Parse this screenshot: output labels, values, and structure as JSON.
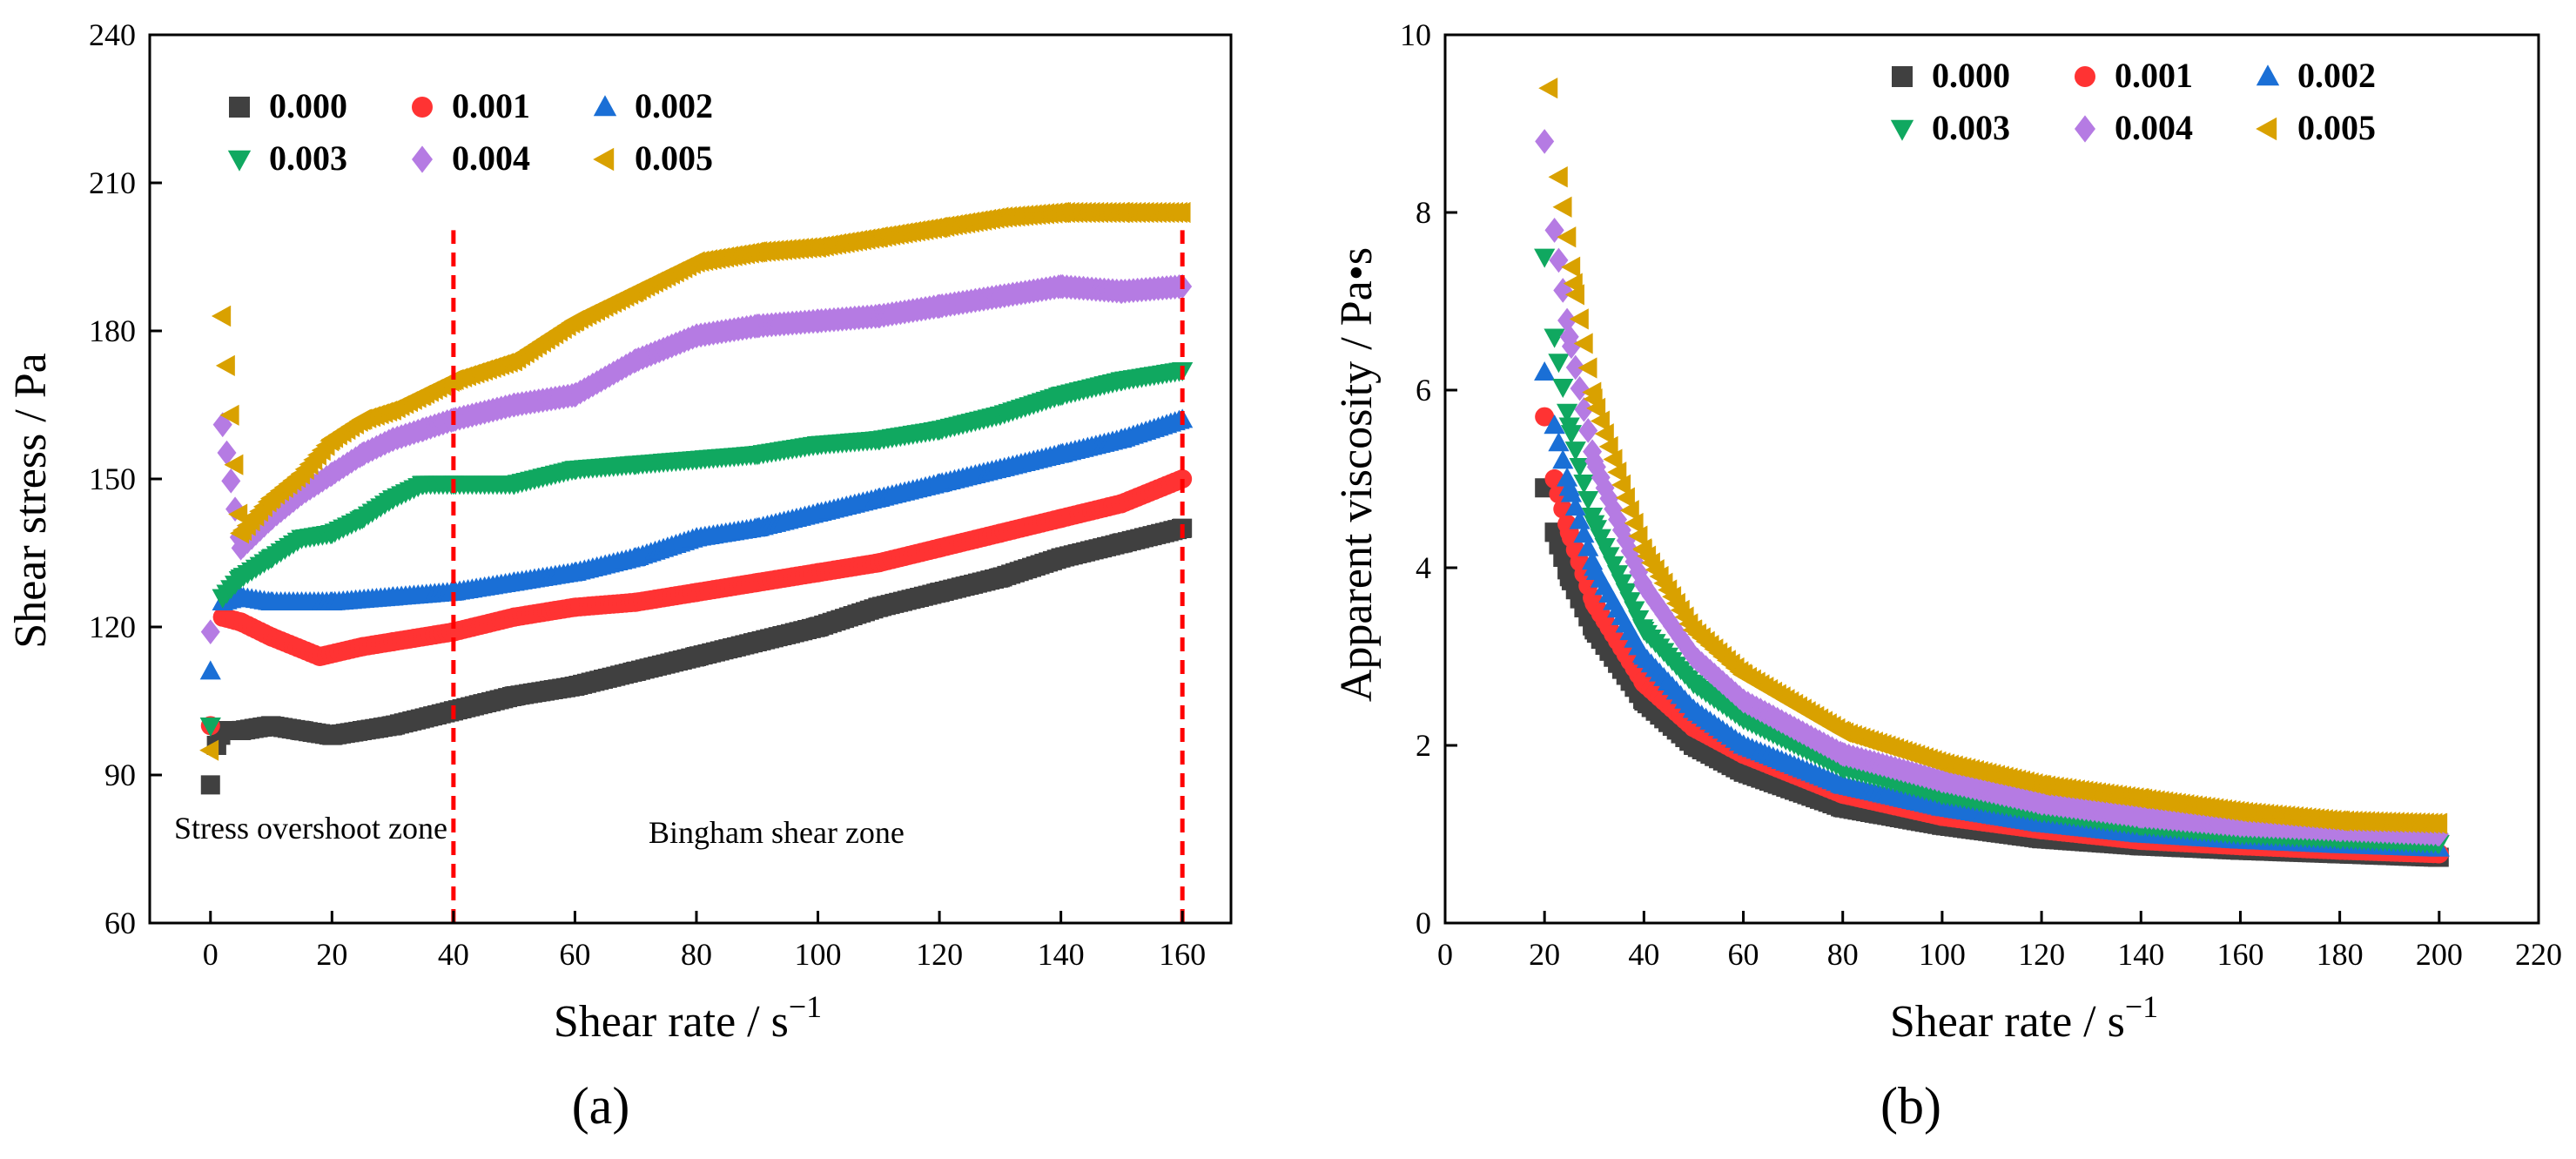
{
  "chart_data": [
    {
      "type": "scatter",
      "panel": "(a)",
      "title": "",
      "xlabel": "Shear rate / s",
      "xlabel_sup": "−1",
      "ylabel": "Shear stress / Pa",
      "xlim": [
        -10,
        168
      ],
      "ylim": [
        60,
        240
      ],
      "xticks": [
        0,
        20,
        40,
        60,
        80,
        100,
        120,
        140,
        160
      ],
      "yticks": [
        60,
        90,
        120,
        150,
        180,
        210,
        240
      ],
      "legend_placement": "top-left",
      "reference_lines": [
        40,
        160
      ],
      "annotations": [
        "Stress overshoot zone",
        "Bingham shear zone"
      ],
      "series": [
        {
          "name": "0.000",
          "marker": "square",
          "color": "#404040",
          "x": [
            0,
            1,
            2,
            5,
            10,
            15,
            20,
            30,
            40,
            50,
            60,
            70,
            80,
            90,
            100,
            110,
            120,
            130,
            140,
            150,
            160
          ],
          "y": [
            88,
            96,
            99,
            99,
            100,
            99,
            98,
            100,
            103,
            106,
            108,
            111,
            114,
            117,
            120,
            124,
            127,
            130,
            134,
            137,
            140
          ]
        },
        {
          "name": "0.001",
          "marker": "circle",
          "color": "#ff3333",
          "x": [
            0,
            2,
            5,
            10,
            18,
            25,
            30,
            40,
            50,
            60,
            70,
            80,
            90,
            100,
            110,
            120,
            130,
            140,
            150,
            160
          ],
          "y": [
            100,
            122,
            121,
            118,
            114,
            116,
            117,
            119,
            122,
            124,
            125,
            127,
            129,
            131,
            133,
            136,
            139,
            142,
            145,
            150
          ]
        },
        {
          "name": "0.002",
          "marker": "triangle-up",
          "color": "#1a6fd6",
          "x": [
            0,
            2,
            5,
            10,
            20,
            30,
            40,
            50,
            60,
            70,
            80,
            90,
            100,
            110,
            120,
            130,
            140,
            150,
            160
          ],
          "y": [
            111,
            125,
            126,
            125,
            125,
            126,
            127,
            129,
            131,
            134,
            138,
            140,
            143,
            146,
            149,
            152,
            155,
            158,
            162
          ]
        },
        {
          "name": "0.003",
          "marker": "triangle-down",
          "color": "#10a860",
          "x": [
            0,
            2,
            5,
            10,
            15,
            20,
            25,
            30,
            35,
            40,
            50,
            60,
            70,
            80,
            90,
            100,
            110,
            120,
            130,
            140,
            150,
            160
          ],
          "y": [
            100,
            126,
            130,
            134,
            138,
            139,
            142,
            146,
            149,
            149,
            149,
            152,
            153,
            154,
            155,
            157,
            158,
            160,
            163,
            167,
            170,
            172
          ]
        },
        {
          "name": "0.004",
          "marker": "diamond",
          "color": "#b57be3",
          "x": [
            0,
            2,
            5,
            10,
            15,
            20,
            25,
            30,
            35,
            40,
            50,
            60,
            70,
            80,
            90,
            100,
            110,
            120,
            130,
            140,
            150,
            160
          ],
          "y": [
            119,
            161,
            136,
            142,
            147,
            151,
            155,
            158,
            160,
            162,
            165,
            167,
            174,
            179,
            181,
            182,
            183,
            185,
            187,
            189,
            188,
            189
          ]
        },
        {
          "name": "0.005",
          "marker": "triangle-left",
          "color": "#d9a100",
          "x": [
            0,
            2,
            5,
            10,
            15,
            20,
            25,
            30,
            35,
            40,
            50,
            60,
            70,
            80,
            90,
            100,
            110,
            120,
            130,
            140,
            150,
            160
          ],
          "y": [
            95,
            183,
            139,
            146,
            151,
            158,
            162,
            164,
            167,
            170,
            174,
            182,
            188,
            194,
            196,
            197,
            199,
            201,
            203,
            204,
            204,
            204
          ]
        }
      ]
    },
    {
      "type": "scatter",
      "panel": "(b)",
      "title": "",
      "xlabel": "Shear rate / s",
      "xlabel_sup": "−1",
      "ylabel": "Apparent viscosity / Pa•s",
      "xlim": [
        0,
        220
      ],
      "ylim": [
        0,
        10
      ],
      "xticks": [
        0,
        20,
        40,
        60,
        80,
        100,
        120,
        140,
        160,
        180,
        200,
        220
      ],
      "yticks": [
        0,
        2,
        4,
        6,
        8,
        10
      ],
      "legend_placement": "top-right",
      "series": [
        {
          "name": "0.000",
          "marker": "square",
          "color": "#404040",
          "x": [
            20,
            22,
            25,
            30,
            40,
            50,
            60,
            80,
            100,
            120,
            140,
            160,
            180,
            200
          ],
          "y": [
            4.9,
            4.4,
            3.9,
            3.3,
            2.5,
            2.0,
            1.7,
            1.3,
            1.1,
            0.95,
            0.87,
            0.82,
            0.78,
            0.74
          ]
        },
        {
          "name": "0.001",
          "marker": "circle",
          "color": "#ff3333",
          "x": [
            20,
            22,
            25,
            30,
            40,
            50,
            60,
            80,
            100,
            120,
            140,
            160,
            180,
            200
          ],
          "y": [
            5.7,
            5.0,
            4.4,
            3.6,
            2.7,
            2.2,
            1.9,
            1.45,
            1.2,
            1.05,
            0.93,
            0.87,
            0.82,
            0.78
          ]
        },
        {
          "name": "0.002",
          "marker": "triangle-up",
          "color": "#1a6fd6",
          "x": [
            20,
            22,
            25,
            30,
            40,
            50,
            60,
            80,
            100,
            120,
            140,
            160,
            180,
            200
          ],
          "y": [
            6.2,
            5.6,
            4.9,
            4.0,
            3.0,
            2.4,
            2.0,
            1.55,
            1.3,
            1.12,
            1.0,
            0.93,
            0.88,
            0.84
          ]
        },
        {
          "name": "0.003",
          "marker": "triangle-down",
          "color": "#10a860",
          "x": [
            20,
            22,
            25,
            30,
            40,
            50,
            60,
            80,
            100,
            120,
            140,
            160,
            180,
            200
          ],
          "y": [
            7.5,
            6.6,
            5.6,
            4.5,
            3.3,
            2.7,
            2.3,
            1.75,
            1.45,
            1.25,
            1.1,
            1.0,
            0.95,
            0.9
          ]
        },
        {
          "name": "0.004",
          "marker": "diamond",
          "color": "#b57be3",
          "x": [
            20,
            22,
            25,
            30,
            40,
            50,
            60,
            80,
            100,
            120,
            140,
            160,
            180,
            200
          ],
          "y": [
            8.8,
            7.8,
            6.6,
            5.2,
            3.8,
            3.0,
            2.5,
            1.9,
            1.6,
            1.35,
            1.2,
            1.1,
            1.05,
            1.0
          ]
        },
        {
          "name": "0.005",
          "marker": "triangle-left",
          "color": "#d9a100",
          "x": [
            21,
            23,
            26,
            30,
            40,
            50,
            60,
            80,
            100,
            120,
            140,
            160,
            180,
            200
          ],
          "y": [
            9.4,
            8.4,
            7.2,
            5.9,
            4.2,
            3.3,
            2.8,
            2.15,
            1.8,
            1.55,
            1.4,
            1.25,
            1.15,
            1.12
          ]
        }
      ]
    }
  ]
}
